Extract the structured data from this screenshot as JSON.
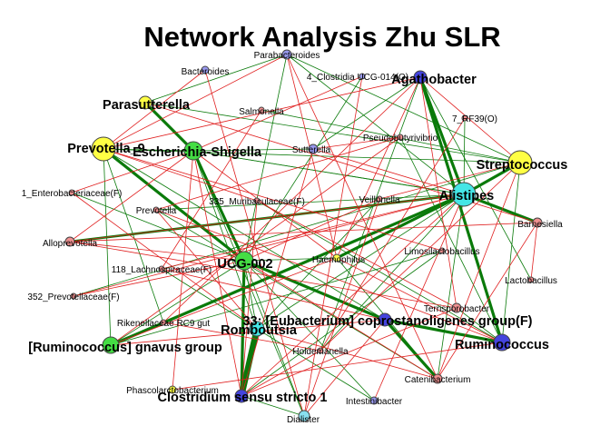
{
  "title": "Network Analysis Zhu SLR",
  "colors": {
    "positive_edge": "#0a7a0a",
    "negative_edge": "#e02020",
    "yellow": "#ffff44",
    "green": "#44dd44",
    "cyan": "#44e6e6",
    "blue": "#4444dd",
    "pink": "#f09090",
    "lavender": "#9999ee",
    "lightcyan": "#88e0f0"
  },
  "nodes": [
    {
      "id": "prevotella9",
      "label": "Prevotella_9",
      "size": "big",
      "color": "yellow",
      "icon": "circle-node"
    },
    {
      "id": "escherichia",
      "label": "Escherichia-Shigella",
      "size": "big",
      "color": "green",
      "icon": "circle-node"
    },
    {
      "id": "parasutterella",
      "label": "Parasutterella",
      "size": "big",
      "color": "yellow",
      "icon": "circle-node"
    },
    {
      "id": "agathobacter",
      "label": "Agathobacter",
      "size": "big",
      "color": "blue",
      "icon": "circle-node"
    },
    {
      "id": "streptococcus",
      "label": "Streptococcus",
      "size": "big",
      "color": "yellow",
      "icon": "circle-node"
    },
    {
      "id": "alistipes",
      "label": "Alistipes",
      "size": "big",
      "color": "cyan",
      "icon": "circle-node"
    },
    {
      "id": "ucg002",
      "label": "UCG-002",
      "size": "big",
      "color": "green",
      "icon": "circle-node"
    },
    {
      "id": "eubacterium",
      "label": "33: [Eubacterium] coprostanoligenes group(F)",
      "size": "big",
      "color": "blue",
      "icon": "circle-node"
    },
    {
      "id": "romboutsia",
      "label": "Romboutsia",
      "size": "big",
      "color": "cyan",
      "icon": "circle-node"
    },
    {
      "id": "ruminococcus",
      "label": "Ruminococcus",
      "size": "big",
      "color": "blue",
      "icon": "circle-node"
    },
    {
      "id": "gnavus",
      "label": "[Ruminococcus] gnavus group",
      "size": "big",
      "color": "green",
      "icon": "circle-node"
    },
    {
      "id": "clostridium",
      "label": "Clostridium sensu stricto 1",
      "size": "big",
      "color": "blue",
      "icon": "circle-node"
    },
    {
      "id": "parabacteroides",
      "label": "Parabacteroides",
      "size": "small",
      "color": "lavender",
      "icon": "circle-node"
    },
    {
      "id": "bacteroides",
      "label": "Bacteroides",
      "size": "small",
      "color": "lavender",
      "icon": "circle-node"
    },
    {
      "id": "clostridia",
      "label": "4_Clostridia UCG-014(O)",
      "size": "small",
      "color": "lavender",
      "icon": "circle-node"
    },
    {
      "id": "rf39",
      "label": "7_RF39(O)",
      "size": "small",
      "color": "pink",
      "icon": "circle-node"
    },
    {
      "id": "salmonella",
      "label": "Salmonella",
      "size": "small",
      "color": "pink",
      "icon": "circle-node"
    },
    {
      "id": "sutterella",
      "label": "Sutterella",
      "size": "small",
      "color": "lavender",
      "icon": "circle-node"
    },
    {
      "id": "pseudobutyrivibrio",
      "label": "Pseudobutyrivibrio",
      "size": "small",
      "color": "pink",
      "icon": "circle-node"
    },
    {
      "id": "enterobacteriaceae",
      "label": "1_Enterobacteriaceae(F)",
      "size": "small",
      "color": "pink",
      "icon": "circle-node"
    },
    {
      "id": "muribaculaceae",
      "label": "335_Muribaculaceae(F)",
      "size": "small",
      "color": "pink",
      "icon": "circle-node"
    },
    {
      "id": "veillonella",
      "label": "Veillonella",
      "size": "small",
      "color": "pink",
      "icon": "circle-node"
    },
    {
      "id": "barnesiella",
      "label": "Barnesiella",
      "size": "small",
      "color": "pink",
      "icon": "circle-node"
    },
    {
      "id": "prevotella",
      "label": "Prevotella",
      "size": "small",
      "color": "pink",
      "icon": "circle-node"
    },
    {
      "id": "alloprevotella",
      "label": "Alloprevotella",
      "size": "small",
      "color": "pink",
      "icon": "circle-node"
    },
    {
      "id": "limosilactobacillus",
      "label": "Limosilactobacillus",
      "size": "small",
      "color": "pink",
      "icon": "circle-node"
    },
    {
      "id": "haemophilus",
      "label": "Haemophilus",
      "size": "small",
      "color": "yellow",
      "icon": "circle-node"
    },
    {
      "id": "lachnospiraceae",
      "label": "118_Lachnospiraceae(F)",
      "size": "small",
      "color": "pink",
      "icon": "circle-node"
    },
    {
      "id": "lactobacillus",
      "label": "Lactobacillus",
      "size": "small",
      "color": "pink",
      "icon": "circle-node"
    },
    {
      "id": "prevotellaceae",
      "label": "352_Prevotellaceae(F)",
      "size": "small",
      "color": "pink",
      "icon": "circle-node"
    },
    {
      "id": "terrisporobacter",
      "label": "Terrisporobacter",
      "size": "small",
      "color": "pink",
      "icon": "circle-node"
    },
    {
      "id": "rikenellaceae",
      "label": "Rikenellaceae RC9 gut",
      "size": "small",
      "color": "pink",
      "icon": "circle-node"
    },
    {
      "id": "holdemanella",
      "label": "Holdemanella",
      "size": "small",
      "color": "pink",
      "icon": "circle-node"
    },
    {
      "id": "catenibacterium",
      "label": "Catenibacterium",
      "size": "small",
      "color": "pink",
      "icon": "circle-node"
    },
    {
      "id": "phascolarctobacterium",
      "label": "Phascolarctobacterium",
      "size": "small",
      "color": "yellow",
      "icon": "circle-node"
    },
    {
      "id": "intestinibacter",
      "label": "Intestinibacter",
      "size": "small",
      "color": "lavender",
      "icon": "circle-node"
    },
    {
      "id": "dialister",
      "label": "Dialister",
      "size": "small",
      "color": "lightcyan",
      "icon": "circle-node"
    }
  ],
  "edges": [
    [
      "prevotella9",
      "ucg002",
      "positive",
      "heavy"
    ],
    [
      "alloprevotella",
      "alistipes",
      "positive",
      "heavy"
    ],
    [
      "romboutsia",
      "clostridium",
      "positive",
      "heavy"
    ],
    [
      "eubacterium",
      "catenibacterium",
      "positive",
      "heavy"
    ],
    [
      "eubacterium",
      "ruminococcus",
      "positive",
      "heavy"
    ],
    [
      "ucg002",
      "eubacterium",
      "positive",
      "heavy"
    ],
    [
      "escherichia",
      "ucg002",
      "positive",
      "heavy"
    ],
    [
      "agathobacter",
      "alistipes",
      "positive",
      "heavy"
    ],
    [
      "agathobacter",
      "ruminococcus",
      "positive",
      "heavy"
    ],
    [
      "alistipes",
      "streptococcus",
      "positive",
      "heavy"
    ],
    [
      "alistipes",
      "haemophilus",
      "positive",
      "heavy"
    ],
    [
      "alistipes",
      "barnesiella",
      "positive",
      "heavy"
    ],
    [
      "gnavus",
      "alistipes",
      "positive",
      "heavy"
    ],
    [
      "parasutterella",
      "escherichia",
      "positive",
      "heavy"
    ],
    [
      "clostridium",
      "ucg002",
      "positive",
      "heavy"
    ],
    [
      "prevotella9",
      "streptococcus",
      "positive",
      "normal"
    ],
    [
      "parabacteroides",
      "alistipes",
      "positive",
      "normal"
    ],
    [
      "parabacteroides",
      "ucg002",
      "positive",
      "normal"
    ],
    [
      "parabacteroides",
      "parasutterella",
      "positive",
      "normal"
    ],
    [
      "parabacteroides",
      "streptococcus",
      "positive",
      "normal"
    ],
    [
      "salmonella",
      "streptococcus",
      "positive",
      "normal"
    ],
    [
      "parasutterella",
      "streptococcus",
      "positive",
      "normal"
    ],
    [
      "sutterella",
      "agathobacter",
      "positive",
      "normal"
    ],
    [
      "sutterella",
      "escherichia",
      "positive",
      "normal"
    ],
    [
      "agathobacter",
      "holdemanella",
      "positive",
      "normal"
    ],
    [
      "agathobacter",
      "lactobacillus",
      "positive",
      "normal"
    ],
    [
      "pseudobutyrivibrio",
      "ruminococcus",
      "positive",
      "normal"
    ],
    [
      "alistipes",
      "escherichia",
      "positive",
      "normal"
    ],
    [
      "alistipes",
      "prevotella",
      "positive",
      "normal"
    ],
    [
      "alistipes",
      "catenibacterium",
      "positive",
      "normal"
    ],
    [
      "alistipes",
      "holdemanella",
      "positive",
      "normal"
    ],
    [
      "alistipes",
      "romboutsia",
      "positive",
      "normal"
    ],
    [
      "muribaculaceae",
      "ruminococcus",
      "positive",
      "normal"
    ],
    [
      "escherichia",
      "prevotella9",
      "positive",
      "normal"
    ],
    [
      "escherichia",
      "alistipes",
      "positive",
      "normal"
    ],
    [
      "escherichia",
      "dialister",
      "positive",
      "normal"
    ],
    [
      "escherichia",
      "romboutsia",
      "positive",
      "normal"
    ],
    [
      "prevotella9",
      "eubacterium",
      "positive",
      "normal"
    ],
    [
      "prevotella9",
      "gnavus",
      "positive",
      "normal"
    ],
    [
      "prevotella9",
      "rikenellaceae",
      "positive",
      "normal"
    ],
    [
      "prevotella",
      "catenibacterium",
      "positive",
      "normal"
    ],
    [
      "enterobacteriaceae",
      "ucg002",
      "positive",
      "normal"
    ],
    [
      "lachnospiraceae",
      "romboutsia",
      "positive",
      "normal"
    ],
    [
      "prevotellaceae",
      "streptococcus",
      "positive",
      "normal"
    ],
    [
      "ucg002",
      "romboutsia",
      "positive",
      "normal"
    ],
    [
      "ucg002",
      "haemophilus",
      "positive",
      "normal"
    ],
    [
      "ucg002",
      "intestinibacter",
      "positive",
      "normal"
    ],
    [
      "ucg002",
      "dialister",
      "positive",
      "normal"
    ],
    [
      "gnavus",
      "ucg002",
      "positive",
      "normal"
    ],
    [
      "gnavus",
      "limosilactobacillus",
      "positive",
      "normal"
    ],
    [
      "limosilactobacillus",
      "clostridium",
      "positive",
      "normal"
    ],
    [
      "terrisporobacter",
      "ruminococcus",
      "positive",
      "normal"
    ],
    [
      "haemophilus",
      "catenibacterium",
      "positive",
      "normal"
    ],
    [
      "streptococcus",
      "ruminococcus",
      "positive",
      "normal"
    ],
    [
      "clostridia",
      "ucg002",
      "positive",
      "normal"
    ],
    [
      "veillonella",
      "romboutsia",
      "positive",
      "normal"
    ],
    [
      "romboutsia",
      "intestinibacter",
      "positive",
      "normal"
    ],
    [
      "clostridium",
      "dialister",
      "positive",
      "normal"
    ],
    [
      "rf39",
      "alistipes",
      "positive",
      "normal"
    ],
    [
      "bacteroides",
      "dialister",
      "negative",
      "normal"
    ],
    [
      "parabacteroides",
      "catenibacterium",
      "negative",
      "normal"
    ],
    [
      "parabacteroides",
      "haemophilus",
      "negative",
      "normal"
    ],
    [
      "parabacteroides",
      "prevotella9",
      "negative",
      "normal"
    ],
    [
      "agathobacter",
      "prevotella9",
      "negative",
      "normal"
    ],
    [
      "agathobacter",
      "terrisporobacter",
      "negative",
      "normal"
    ],
    [
      "agathobacter",
      "haemophilus",
      "negative",
      "normal"
    ],
    [
      "agathobacter",
      "streptococcus",
      "negative",
      "normal"
    ],
    [
      "alistipes",
      "alloprevotella",
      "negative",
      "normal"
    ],
    [
      "alistipes",
      "lachnospiraceae",
      "negative",
      "normal"
    ],
    [
      "alistipes",
      "prevotellaceae",
      "negative",
      "normal"
    ],
    [
      "alistipes",
      "clostridium",
      "negative",
      "normal"
    ],
    [
      "alistipes",
      "sutterella",
      "negative",
      "normal"
    ],
    [
      "alistipes",
      "intestinibacter",
      "negative",
      "normal"
    ],
    [
      "streptococcus",
      "holdemanella",
      "negative",
      "normal"
    ],
    [
      "streptococcus",
      "veillonella",
      "negative",
      "normal"
    ],
    [
      "streptococcus",
      "catenibacterium",
      "negative",
      "normal"
    ],
    [
      "barnesiella",
      "alloprevotella",
      "negative",
      "normal"
    ],
    [
      "barnesiella",
      "catenibacterium",
      "negative",
      "normal"
    ],
    [
      "rf39",
      "holdemanella",
      "negative",
      "normal"
    ],
    [
      "pseudobutyrivibrio",
      "gnavus",
      "negative",
      "normal"
    ],
    [
      "pseudobutyrivibrio",
      "prevotella",
      "negative",
      "normal"
    ],
    [
      "pseudobutyrivibrio",
      "sutterella",
      "negative",
      "normal"
    ],
    [
      "muribaculaceae",
      "prevotella9",
      "negative",
      "normal"
    ],
    [
      "muribaculaceae",
      "clostridium",
      "negative",
      "normal"
    ],
    [
      "muribaculaceae",
      "terrisporobacter",
      "negative",
      "normal"
    ],
    [
      "enterobacteriaceae",
      "romboutsia",
      "negative",
      "normal"
    ],
    [
      "enterobacteriaceae",
      "escherichia",
      "negative",
      "normal"
    ],
    [
      "escherichia",
      "clostridium",
      "negative",
      "normal"
    ],
    [
      "escherichia",
      "haemophilus",
      "negative",
      "normal"
    ],
    [
      "escherichia",
      "alloprevotella",
      "negative",
      "normal"
    ],
    [
      "prevotella",
      "ruminococcus",
      "negative",
      "normal"
    ],
    [
      "prevotella",
      "romboutsia",
      "negative",
      "normal"
    ],
    [
      "alloprevotella",
      "ucg002",
      "negative",
      "normal"
    ],
    [
      "alloprevotella",
      "terrisporobacter",
      "negative",
      "normal"
    ],
    [
      "lachnospiraceae",
      "eubacterium",
      "negative",
      "normal"
    ],
    [
      "prevotellaceae",
      "ucg002",
      "negative",
      "normal"
    ],
    [
      "rikenellaceae",
      "agathobacter",
      "negative",
      "normal"
    ],
    [
      "rikenellaceae",
      "holdemanella",
      "negative",
      "normal"
    ],
    [
      "gnavus",
      "eubacterium",
      "negative",
      "normal"
    ],
    [
      "gnavus",
      "haemophilus",
      "negative",
      "normal"
    ],
    [
      "ucg002",
      "veillonella",
      "negative",
      "normal"
    ],
    [
      "ucg002",
      "catenibacterium",
      "negative",
      "normal"
    ],
    [
      "holdemanella",
      "clostridium",
      "negative",
      "normal"
    ],
    [
      "catenibacterium",
      "romboutsia",
      "negative",
      "normal"
    ],
    [
      "phascolarctobacterium",
      "ruminococcus",
      "negative",
      "normal"
    ],
    [
      "phascolarctobacterium",
      "escherichia",
      "negative",
      "normal"
    ],
    [
      "sutterella",
      "clostridium",
      "negative",
      "normal"
    ],
    [
      "veillonella",
      "dialister",
      "negative",
      "normal"
    ],
    [
      "lactobacillus",
      "barnesiella",
      "negative",
      "normal"
    ],
    [
      "clostridia",
      "dialister",
      "negative",
      "normal"
    ],
    [
      "clostridia",
      "escherichia",
      "negative",
      "normal"
    ],
    [
      "salmonella",
      "lachnospiraceae",
      "negative",
      "normal"
    ],
    [
      "bacteroides",
      "prevotella9",
      "negative",
      "normal"
    ],
    [
      "parasutterella",
      "barnesiella",
      "negative",
      "normal"
    ],
    [
      "terrisporobacter",
      "clostridium",
      "negative",
      "normal"
    ],
    [
      "haemophilus",
      "ruminococcus",
      "negative",
      "normal"
    ],
    [
      "limosilactobacillus",
      "prevotella9",
      "negative",
      "normal"
    ],
    [
      "dialister",
      "eubacterium",
      "negative",
      "normal"
    ]
  ]
}
